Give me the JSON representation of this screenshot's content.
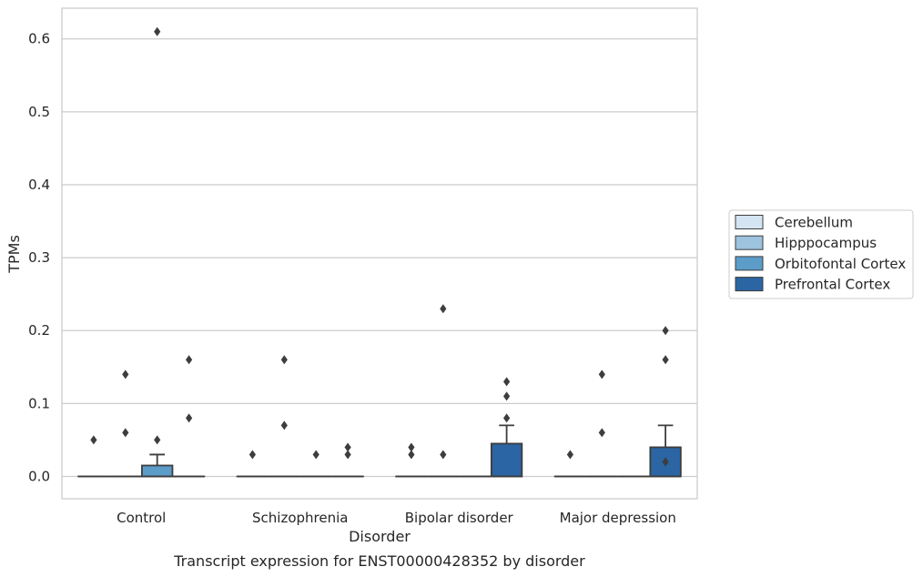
{
  "chart_data": {
    "type": "boxplot",
    "xlabel": "Disorder",
    "ylabel": "TPMs",
    "caption": "Transcript expression for ENST00000428352 by disorder",
    "ylim": [
      -0.03,
      0.64
    ],
    "yticks": [
      0.0,
      0.1,
      0.2,
      0.3,
      0.4,
      0.5,
      0.6
    ],
    "ytick_labels": [
      "0.0",
      "0.1",
      "0.2",
      "0.3",
      "0.4",
      "0.5",
      "0.6"
    ],
    "grid": "horizontal",
    "legend_position": "right",
    "categories": [
      "Control",
      "Schizophrenia",
      "Bipolar disorder",
      "Major depression"
    ],
    "series": [
      {
        "name": "Cerebellum",
        "color": "#d4e4f2",
        "boxes": [
          {
            "q1": 0,
            "median": 0,
            "q3": 0,
            "whisker_low": 0,
            "whisker_high": 0,
            "outliers": [
              0.05
            ]
          },
          {
            "q1": 0,
            "median": 0,
            "q3": 0,
            "whisker_low": 0,
            "whisker_high": 0,
            "outliers": [
              0.03
            ]
          },
          {
            "q1": 0,
            "median": 0,
            "q3": 0,
            "whisker_low": 0,
            "whisker_high": 0,
            "outliers": [
              0.04,
              0.03
            ]
          },
          {
            "q1": 0,
            "median": 0,
            "q3": 0,
            "whisker_low": 0,
            "whisker_high": 0,
            "outliers": [
              0.03
            ]
          }
        ]
      },
      {
        "name": "Hipppocampus",
        "color": "#9dc3de",
        "boxes": [
          {
            "q1": 0,
            "median": 0,
            "q3": 0,
            "whisker_low": 0,
            "whisker_high": 0,
            "outliers": [
              0.14,
              0.06
            ]
          },
          {
            "q1": 0,
            "median": 0,
            "q3": 0,
            "whisker_low": 0,
            "whisker_high": 0,
            "outliers": [
              0.16,
              0.07
            ]
          },
          {
            "q1": 0,
            "median": 0,
            "q3": 0,
            "whisker_low": 0,
            "whisker_high": 0,
            "outliers": [
              0.23,
              0.03
            ]
          },
          {
            "q1": 0,
            "median": 0,
            "q3": 0,
            "whisker_low": 0,
            "whisker_high": 0,
            "outliers": [
              0.14,
              0.06
            ]
          }
        ]
      },
      {
        "name": "Orbitofontal Cortex",
        "color": "#5b9cc8",
        "boxes": [
          {
            "q1": 0,
            "median": 0,
            "q3": 0.015,
            "whisker_low": 0,
            "whisker_high": 0.03,
            "outliers": [
              0.61,
              0.05
            ]
          },
          {
            "q1": 0,
            "median": 0,
            "q3": 0,
            "whisker_low": 0,
            "whisker_high": 0,
            "outliers": [
              0.03
            ]
          },
          {
            "q1": 0,
            "median": 0,
            "q3": 0,
            "whisker_low": 0,
            "whisker_high": 0,
            "outliers": []
          },
          {
            "q1": 0,
            "median": 0,
            "q3": 0,
            "whisker_low": 0,
            "whisker_high": 0,
            "outliers": []
          }
        ]
      },
      {
        "name": "Prefrontal Cortex",
        "color": "#2b65a3",
        "boxes": [
          {
            "q1": 0,
            "median": 0,
            "q3": 0,
            "whisker_low": 0,
            "whisker_high": 0,
            "outliers": [
              0.16,
              0.08
            ]
          },
          {
            "q1": 0,
            "median": 0,
            "q3": 0,
            "whisker_low": 0,
            "whisker_high": 0,
            "outliers": [
              0.04,
              0.03
            ]
          },
          {
            "q1": 0,
            "median": 0,
            "q3": 0.045,
            "whisker_low": 0,
            "whisker_high": 0.07,
            "outliers": [
              0.13,
              0.11,
              0.08
            ]
          },
          {
            "q1": 0,
            "median": 0,
            "q3": 0.04,
            "whisker_low": 0,
            "whisker_high": 0.07,
            "outliers": [
              0.2,
              0.16,
              0.02
            ]
          }
        ]
      }
    ]
  }
}
